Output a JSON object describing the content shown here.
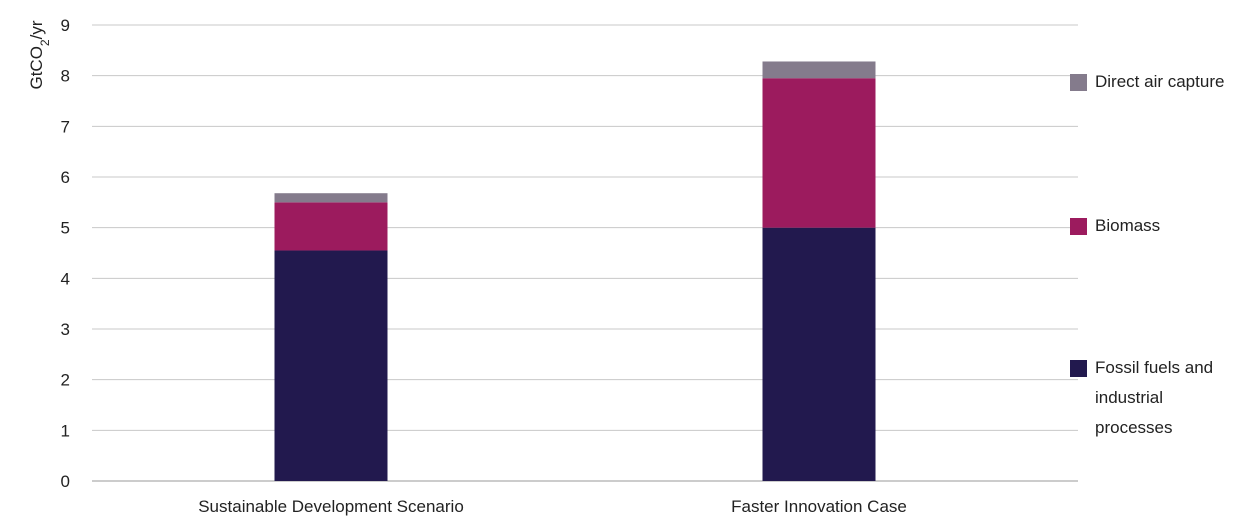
{
  "chart_data": {
    "type": "bar",
    "stacked": true,
    "title": "",
    "xlabel": "",
    "ylabel": "GtCO2/yr",
    "ylim": [
      0,
      9
    ],
    "yticks": [
      0,
      1,
      2,
      3,
      4,
      5,
      6,
      7,
      8,
      9
    ],
    "grid": true,
    "legend_position": "right",
    "categories": [
      "Sustainable Development Scenario",
      "Faster Innovation Case"
    ],
    "series": [
      {
        "name": "Fossil fuels and industrial processes",
        "color": "#22194e",
        "values": [
          4.55,
          5.0
        ]
      },
      {
        "name": "Biomass",
        "color": "#9c1b5e",
        "values": [
          0.95,
          2.95
        ]
      },
      {
        "name": "Direct air capture",
        "color": "#847b8c",
        "values": [
          0.18,
          0.33
        ]
      }
    ]
  }
}
